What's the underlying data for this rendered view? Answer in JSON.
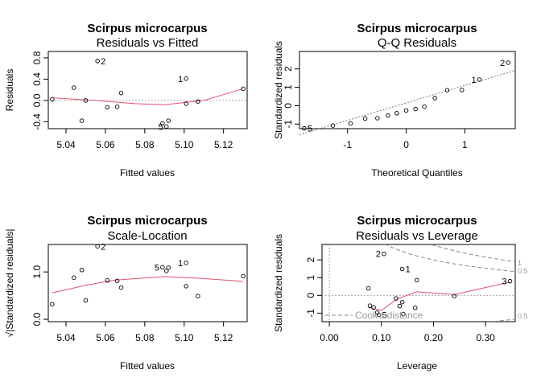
{
  "chart_data": [
    {
      "type": "scatter",
      "title": "Scirpus microcarpus",
      "subtitle": "Residuals vs Fitted",
      "xlabel": "Fitted values",
      "ylabel": "Residuals",
      "xlim": [
        5.031,
        5.132
      ],
      "ylim": [
        -0.53,
        0.92
      ],
      "xticks": [
        "5.04",
        "5.06",
        "5.08",
        "5.10",
        "5.12"
      ],
      "yticks": [
        "-0.4",
        "0.0",
        "0.4",
        "0.8"
      ],
      "points": [
        {
          "x": 5.033,
          "y": 0.02
        },
        {
          "x": 5.044,
          "y": 0.24
        },
        {
          "x": 5.048,
          "y": -0.38
        },
        {
          "x": 5.05,
          "y": 0.0
        },
        {
          "x": 5.056,
          "y": 0.74,
          "label": "2"
        },
        {
          "x": 5.061,
          "y": -0.13
        },
        {
          "x": 5.066,
          "y": -0.12
        },
        {
          "x": 5.068,
          "y": 0.14
        },
        {
          "x": 5.089,
          "y": -0.43
        },
        {
          "x": 5.091,
          "y": -0.49,
          "label": "5"
        },
        {
          "x": 5.092,
          "y": -0.38
        },
        {
          "x": 5.101,
          "y": 0.41,
          "label": "1"
        },
        {
          "x": 5.101,
          "y": -0.06
        },
        {
          "x": 5.107,
          "y": -0.02
        },
        {
          "x": 5.13,
          "y": 0.22
        }
      ],
      "smooth": [
        {
          "x": 5.033,
          "y": 0.05
        },
        {
          "x": 5.055,
          "y": 0.0
        },
        {
          "x": 5.075,
          "y": -0.06
        },
        {
          "x": 5.09,
          "y": -0.08
        },
        {
          "x": 5.11,
          "y": 0.0
        },
        {
          "x": 5.13,
          "y": 0.22
        }
      ],
      "refline": 0
    },
    {
      "type": "scatter",
      "title": "Scirpus microcarpus",
      "subtitle": "Q-Q Residuals",
      "xlabel": "Theoretical Quantiles",
      "ylabel": "Standardized residuals",
      "xlim": [
        -1.82,
        1.86
      ],
      "ylim": [
        -1.25,
        2.95
      ],
      "xticks": [
        "-1",
        "0",
        "1"
      ],
      "yticks": [
        "-1",
        "0",
        "1",
        "2"
      ],
      "points": [
        {
          "x": -1.74,
          "y": -1.23,
          "label": "5"
        },
        {
          "x": -1.25,
          "y": -1.08
        },
        {
          "x": -0.95,
          "y": -0.97
        },
        {
          "x": -0.7,
          "y": -0.7
        },
        {
          "x": -0.49,
          "y": -0.68
        },
        {
          "x": -0.31,
          "y": -0.53
        },
        {
          "x": -0.16,
          "y": -0.41
        },
        {
          "x": 0.0,
          "y": -0.26
        },
        {
          "x": 0.16,
          "y": -0.18
        },
        {
          "x": 0.31,
          "y": -0.05
        },
        {
          "x": 0.49,
          "y": 0.41
        },
        {
          "x": 0.7,
          "y": 0.84
        },
        {
          "x": 0.95,
          "y": 0.85
        },
        {
          "x": 1.25,
          "y": 1.42,
          "label": "1"
        },
        {
          "x": 1.74,
          "y": 2.34,
          "label": "2"
        }
      ],
      "refline": {
        "x0": -1.82,
        "y0": -1.58,
        "x1": 1.86,
        "y1": 1.92
      }
    },
    {
      "type": "scatter",
      "title": "Scirpus microcarpus",
      "subtitle": "Scale-Location",
      "xlabel": "Fitted values",
      "ylabel": "√|Standardized residuals|",
      "xlim": [
        5.031,
        5.132
      ],
      "ylim": [
        -0.05,
        1.58
      ],
      "xticks": [
        "5.04",
        "5.06",
        "5.08",
        "5.10",
        "5.12"
      ],
      "yticks": [
        "0.0",
        "1.0"
      ],
      "points": [
        {
          "x": 5.033,
          "y": 0.32
        },
        {
          "x": 5.044,
          "y": 0.88
        },
        {
          "x": 5.048,
          "y": 1.04
        },
        {
          "x": 5.05,
          "y": 0.4
        },
        {
          "x": 5.056,
          "y": 1.54,
          "label": "2"
        },
        {
          "x": 5.061,
          "y": 0.82
        },
        {
          "x": 5.066,
          "y": 0.81
        },
        {
          "x": 5.068,
          "y": 0.67
        },
        {
          "x": 5.089,
          "y": 1.1,
          "label": "5"
        },
        {
          "x": 5.091,
          "y": 1.02
        },
        {
          "x": 5.092,
          "y": 1.09
        },
        {
          "x": 5.101,
          "y": 1.19,
          "label": "1"
        },
        {
          "x": 5.101,
          "y": 0.7
        },
        {
          "x": 5.107,
          "y": 0.49
        },
        {
          "x": 5.13,
          "y": 0.91
        }
      ],
      "smooth": [
        {
          "x": 5.033,
          "y": 0.56
        },
        {
          "x": 5.05,
          "y": 0.72
        },
        {
          "x": 5.065,
          "y": 0.83
        },
        {
          "x": 5.09,
          "y": 0.9
        },
        {
          "x": 5.11,
          "y": 0.86
        },
        {
          "x": 5.13,
          "y": 0.8
        }
      ]
    },
    {
      "type": "scatter",
      "title": "Scirpus microcarpus",
      "subtitle": "Residuals vs Leverage",
      "xlabel": "Leverage",
      "ylabel": "Standardized residuals",
      "xlim": [
        -0.014,
        0.357
      ],
      "ylim": [
        -1.48,
        2.87
      ],
      "xticks": [
        "0.00",
        "0.10",
        "0.20",
        "0.30"
      ],
      "yticks": [
        "-1",
        "0",
        "1",
        "2"
      ],
      "points": [
        {
          "x": 0.075,
          "y": 0.4
        },
        {
          "x": 0.078,
          "y": -0.58
        },
        {
          "x": 0.085,
          "y": -0.68
        },
        {
          "x": 0.092,
          "y": -0.97
        },
        {
          "x": 0.095,
          "y": -1.1,
          "label": "5"
        },
        {
          "x": 0.105,
          "y": 2.34,
          "label": "2"
        },
        {
          "x": 0.128,
          "y": -0.17
        },
        {
          "x": 0.135,
          "y": -0.6
        },
        {
          "x": 0.14,
          "y": 1.49,
          "label": "1"
        },
        {
          "x": 0.14,
          "y": -0.38
        },
        {
          "x": 0.142,
          "y": -1.05
        },
        {
          "x": 0.165,
          "y": -0.7
        },
        {
          "x": 0.168,
          "y": 0.86
        },
        {
          "x": 0.24,
          "y": -0.04
        },
        {
          "x": 0.347,
          "y": 0.8,
          "label": "3"
        }
      ],
      "smooth": [
        {
          "x": 0.075,
          "y": -0.68
        },
        {
          "x": 0.1,
          "y": -0.85
        },
        {
          "x": 0.13,
          "y": -0.2
        },
        {
          "x": 0.168,
          "y": 0.2
        },
        {
          "x": 0.24,
          "y": 0.05
        },
        {
          "x": 0.347,
          "y": 0.75
        }
      ],
      "cooks_legend": "Cook's distance",
      "cooks_levels": [
        "1",
        "0.5",
        "0.5"
      ]
    }
  ]
}
